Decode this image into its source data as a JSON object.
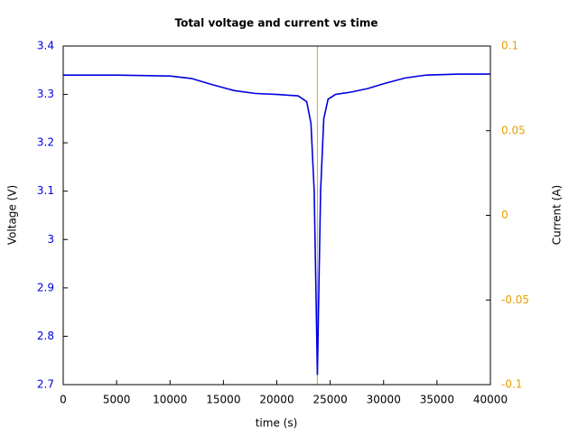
{
  "chart_data": {
    "type": "line",
    "title": "Total voltage and current vs time",
    "x_label": "time (s)",
    "y_label": "Voltage (V)",
    "y2_label": "Current (A)",
    "xlim": [
      0,
      40000
    ],
    "xticks": [
      0,
      5000,
      10000,
      15000,
      20000,
      25000,
      30000,
      35000,
      40000
    ],
    "ylim": [
      2.7,
      3.4
    ],
    "yticks": [
      2.7,
      2.8,
      2.9,
      3,
      3.1,
      3.2,
      3.3,
      3.4
    ],
    "y2lim": [
      -0.1,
      0.1
    ],
    "y2ticks": [
      -0.1,
      -0.05,
      0,
      0.05,
      0.1
    ],
    "series": [
      {
        "name": "Voltage",
        "color": "#0000e0",
        "x": [
          0,
          5000,
          10000,
          12000,
          14000,
          16000,
          18000,
          20000,
          22000,
          22800,
          23200,
          23500,
          23700,
          23800,
          23900,
          24100,
          24400,
          24800,
          25500,
          27000,
          28500,
          30000,
          32000,
          34000,
          37000,
          40000
        ],
        "values": [
          3.34,
          3.34,
          3.338,
          3.333,
          3.32,
          3.308,
          3.302,
          3.3,
          3.297,
          3.285,
          3.24,
          3.1,
          2.85,
          2.72,
          2.85,
          3.1,
          3.25,
          3.29,
          3.3,
          3.305,
          3.312,
          3.322,
          3.334,
          3.34,
          3.342,
          3.342
        ]
      },
      {
        "name": "Current",
        "color": "#e8a000",
        "axis": "y2",
        "x": [
          23800,
          23800
        ],
        "values": [
          -0.1,
          0.1
        ]
      }
    ]
  }
}
